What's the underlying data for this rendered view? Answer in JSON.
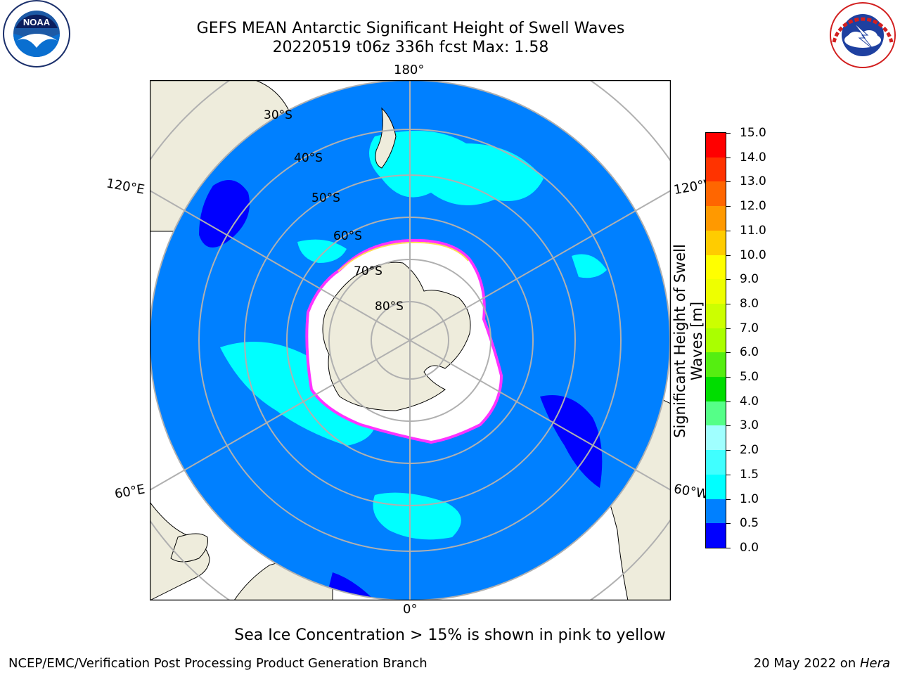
{
  "title": {
    "line1": "GEFS MEAN Antarctic Significant Height of Swell Waves",
    "line2": "20220519 t06z 336h fcst   Max: 1.58"
  },
  "logos": {
    "noaa_text": "NOAA",
    "noaa_ring": "NATIONAL OCEANIC AND ATMOSPHERIC ADMINISTRATION · U.S. DEPARTMENT OF COMMERCE",
    "nws_ring": "NATIONAL WEATHER SERVICE"
  },
  "map": {
    "projection": "south-polar-stereographic",
    "longitude_labels": [
      "180°",
      "120°E",
      "120°W",
      "60°E",
      "60°W",
      "0°"
    ],
    "latitude_labels": [
      "30°S",
      "40°S",
      "50°S",
      "60°S",
      "70°S",
      "80°S"
    ],
    "colors": {
      "land": "#eeecdc",
      "ocean_main": "#0080ff",
      "ocean_low": "#0000ff",
      "swell_1_1_5": "#00ffff",
      "sea_ice": "#ffffff",
      "ice_edge_pink": "#ff33ff",
      "ice_edge_yellow": "#ffdd55",
      "grid": "#b0b0b0"
    }
  },
  "colorbar": {
    "label_line1": "Significant Height of Swell",
    "label_line2": "Waves [m]",
    "ticks": [
      "0.0",
      "0.5",
      "1.0",
      "1.5",
      "2.0",
      "3.0",
      "4.0",
      "5.0",
      "6.0",
      "7.0",
      "8.0",
      "9.0",
      "10.0",
      "11.0",
      "12.0",
      "13.0",
      "14.0",
      "15.0"
    ],
    "colors": [
      "#0000ff",
      "#0080ff",
      "#00ffff",
      "#40ffff",
      "#a0ffff",
      "#55ff88",
      "#00dd00",
      "#55ee11",
      "#aaff00",
      "#ccff00",
      "#eeff00",
      "#ffff00",
      "#ffcc00",
      "#ff9900",
      "#ff6600",
      "#ff3300",
      "#ff0000"
    ]
  },
  "footer": {
    "note": "Sea Ice Concentration > 15% is shown in pink to yellow",
    "credit": "NCEP/EMC/Verification Post Processing Product Generation Branch",
    "date_prefix": "20 May 2022 on ",
    "date_machine": "Hera"
  }
}
